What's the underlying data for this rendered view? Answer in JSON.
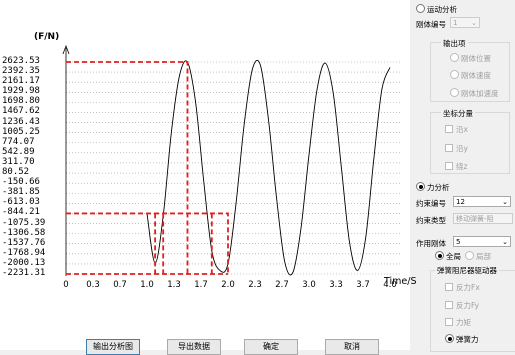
{
  "chart_data": {
    "type": "line",
    "ylabel": "(F/N)",
    "xlabel": "Time/S",
    "y_ticks": [
      "2623.53",
      "2392.35",
      "2161.17",
      "1929.98",
      "1698.80",
      "1467.62",
      "1236.43",
      "1005.25",
      "774.07",
      "542.89",
      "311.70",
      "80.52",
      "-150.66",
      "-381.85",
      "-613.03",
      "-844.21",
      "-1075.39",
      "-1306.58",
      "-1537.76",
      "-1768.94",
      "-2000.13",
      "-2231.31"
    ],
    "x_ticks": [
      "0",
      "0.3",
      "0.7",
      "1.0",
      "1.3",
      "1.7",
      "2.0",
      "2.3",
      "2.7",
      "3.0",
      "3.3",
      "3.7",
      "4.0"
    ],
    "ylim": [
      -2231.31,
      2623.53
    ],
    "xlim": [
      0,
      4.0
    ],
    "grid": true,
    "series": [
      {
        "color": "#000000",
        "x": [
          1.0,
          1.1,
          1.2,
          1.3,
          1.4,
          1.5,
          1.6,
          1.7,
          1.8,
          1.9,
          2.0,
          2.1,
          2.2,
          2.3,
          2.4,
          2.5,
          2.6,
          2.7,
          2.8,
          2.9,
          3.0,
          3.1,
          3.2,
          3.3,
          3.4,
          3.5,
          3.6,
          3.7,
          3.8,
          3.9,
          4.0
        ],
        "y": [
          -844.21,
          -1980,
          -900,
          1000,
          2300,
          2620,
          1700,
          -100,
          -1700,
          -2150,
          -2000,
          -600,
          1200,
          2450,
          2550,
          1300,
          -500,
          -1950,
          -2200,
          -1200,
          500,
          2000,
          2600,
          1900,
          200,
          -1500,
          -2150,
          -1400,
          400,
          2000,
          2500
        ]
      },
      {
        "color": "#e02020",
        "dashed": true,
        "x": [
          0,
          1.5,
          1.5
        ],
        "y": [
          2623.53,
          2623.53,
          -2231.31
        ]
      },
      {
        "color": "#e02020",
        "dashed": true,
        "x": [
          0,
          2.0,
          2.0
        ],
        "y": [
          -844.21,
          -844.21,
          -2231.31
        ]
      },
      {
        "color": "#e02020",
        "dashed": true,
        "x": [
          1.1,
          1.1
        ],
        "y": [
          -844.21,
          -2231.31
        ]
      },
      {
        "color": "#e02020",
        "dashed": true,
        "x": [
          1.2,
          1.2
        ],
        "y": [
          -844.21,
          -2231.31
        ]
      },
      {
        "color": "#e02020",
        "dashed": true,
        "x": [
          1.8,
          1.8
        ],
        "y": [
          -844.21,
          -2231.31
        ]
      },
      {
        "color": "#e02020",
        "dashed": true,
        "x": [
          0,
          2.0
        ],
        "y": [
          -2231.31,
          -2231.31
        ]
      }
    ]
  },
  "buttons": {
    "output_plot": "输出分析图",
    "export_data": "导出数据",
    "confirm": "确定",
    "cancel": "取消"
  },
  "panel": {
    "motion_analysis": "运动分析",
    "rigid_body_no": "刚体编号",
    "rigid_body_value": "1",
    "output_items": "输出项",
    "rb_position": "刚体位置",
    "rb_velocity": "刚体速度",
    "rb_acceleration": "刚体加速度",
    "coord_component": "坐标分量",
    "axis_x": "沿x",
    "axis_y": "沿y",
    "axis_z": "绕z",
    "force_analysis": "力分析",
    "constraint_no": "约束编号",
    "constraint_value": "12",
    "constraint_type": "约束类型",
    "constraint_type_value": "移动弹簧-阻",
    "acting_body": "作用刚体",
    "acting_body_value": "5",
    "all": "全局",
    "local": "局部",
    "spring_damper": "弹簧阻尼器驱动器",
    "reaction_fx": "反力Fx",
    "reaction_fy": "反力Fy",
    "moment": "力矩",
    "spring_force": "弹簧力"
  }
}
